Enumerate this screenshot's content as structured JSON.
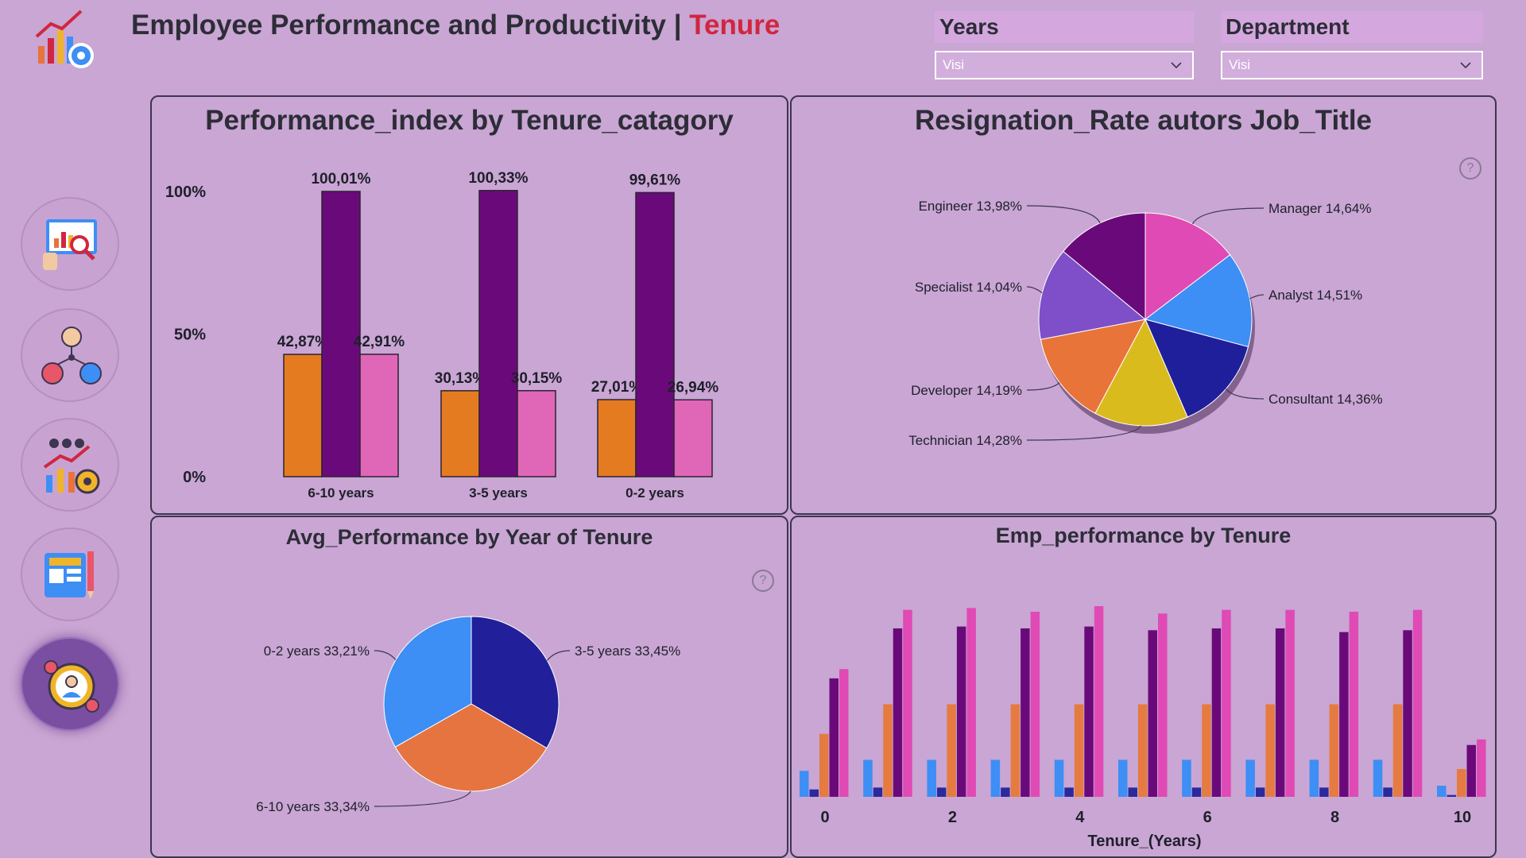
{
  "header": {
    "title_main": "Employee Performance and Productivity |",
    "title_accent": "Tenure",
    "colors": {
      "accent": "#d1263f",
      "background": "#c9a6d3"
    }
  },
  "slicers": [
    {
      "label": "Years",
      "value": "Visi",
      "icon": "chevron-down-icon"
    },
    {
      "label": "Department",
      "value": "Visi",
      "icon": "chevron-down-icon"
    }
  ],
  "nav": [
    {
      "name": "dashboard-analytics-icon"
    },
    {
      "name": "org-structure-icon"
    },
    {
      "name": "team-growth-icon"
    },
    {
      "name": "report-tools-icon"
    },
    {
      "name": "employee-cycle-icon",
      "active": true
    }
  ],
  "chart_data": [
    {
      "type": "bar",
      "title": "Performance_index by Tenure_catagory",
      "categories": [
        "6-10 years",
        "3-5 years",
        "0-2 years"
      ],
      "y_ticks": [
        "100%",
        "50%",
        "0%"
      ],
      "ylim": [
        0,
        100
      ],
      "series": [
        {
          "values": [
            42.87,
            30.13,
            27.01
          ],
          "labels": [
            "42,87%",
            "30,13%",
            "27,01%"
          ],
          "color": "#e57b21"
        },
        {
          "values": [
            100.01,
            100.33,
            99.61
          ],
          "labels": [
            "100,01%",
            "100,33%",
            "99,61%"
          ],
          "color": "#6a0a7a"
        },
        {
          "values": [
            42.91,
            30.15,
            26.94
          ],
          "labels": [
            "42,91%",
            "30,15%",
            "26,94%"
          ],
          "color": "#e066b8"
        }
      ]
    },
    {
      "type": "pie",
      "title": "Resignation_Rate autors Job_Title",
      "slices": [
        {
          "label": "Manager 14,64%",
          "value": 14.64,
          "color": "#e04ab5"
        },
        {
          "label": "Analyst 14,51%",
          "value": 14.51,
          "color": "#3d8ef5"
        },
        {
          "label": "Consultant 14,36%",
          "value": 14.36,
          "color": "#1f1f9c"
        },
        {
          "label": "Technician 14,28%",
          "value": 14.28,
          "color": "#d9bb1e"
        },
        {
          "label": "Developer 14,19%",
          "value": 14.19,
          "color": "#e8743a"
        },
        {
          "label": "Specialist 14,04%",
          "value": 14.04,
          "color": "#7e4fc9"
        },
        {
          "label": "Engineer 13,98%",
          "value": 13.98,
          "color": "#6a0a7a"
        }
      ]
    },
    {
      "type": "pie",
      "title": "Avg_Performance by Year of Tenure",
      "slices": [
        {
          "label": "3-5 years 33,45%",
          "value": 33.45,
          "color": "#21209a"
        },
        {
          "label": "6-10 years 33,34%",
          "value": 33.34,
          "color": "#e57440"
        },
        {
          "label": "0-2 years 33,21%",
          "value": 33.21,
          "color": "#3d8ef5"
        }
      ]
    },
    {
      "type": "bar",
      "title": "Emp_performance by Tenure",
      "xlabel": "Tenure_(Years)",
      "x": [
        0,
        1,
        2,
        3,
        4,
        5,
        6,
        7,
        8,
        9,
        10
      ],
      "x_tick_labels": [
        "0",
        "2",
        "4",
        "6",
        "8",
        "10"
      ],
      "ylim": [
        0,
        100
      ],
      "series": [
        {
          "color": "#3d8ef5",
          "values": [
            14,
            20,
            20,
            20,
            20,
            20,
            20,
            20,
            20,
            20,
            6
          ]
        },
        {
          "color": "#2a2a9e",
          "values": [
            4,
            5,
            5,
            5,
            5,
            5,
            5,
            5,
            5,
            5,
            1
          ]
        },
        {
          "color": "#e57b40",
          "values": [
            34,
            50,
            50,
            50,
            50,
            50,
            50,
            50,
            50,
            50,
            15
          ]
        },
        {
          "color": "#6a0a7a",
          "values": [
            64,
            91,
            92,
            91,
            92,
            90,
            91,
            91,
            89,
            90,
            28
          ]
        },
        {
          "color": "#e04ab5",
          "values": [
            69,
            101,
            102,
            100,
            103,
            99,
            101,
            101,
            100,
            101,
            31
          ]
        }
      ]
    }
  ]
}
